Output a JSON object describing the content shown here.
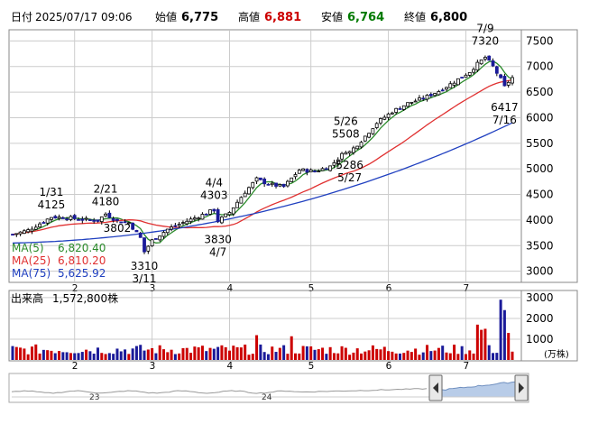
{
  "header": {
    "date_label": "日付",
    "date": "2025/07/17 09:06",
    "open_label": "始値",
    "open": "6,775",
    "high_label": "高値",
    "high": "6,881",
    "low_label": "安値",
    "low": "6,764",
    "close_label": "終値",
    "close": "6,800"
  },
  "colors": {
    "up": "#cc0000",
    "down": "#1a1a99",
    "ma5": "#2a8a2a",
    "ma25": "#e03030",
    "ma75": "#2040c0",
    "high": "#cc0000",
    "low": "#007a00",
    "grid": "#cccccc"
  },
  "legend": {
    "ma5": "MA(5)",
    "ma5_value": "6,820.40",
    "ma25": "MA(25)",
    "ma25_value": "6,810.20",
    "ma75": "MA(75)",
    "ma75_value": "5,625.92"
  },
  "volume_panel": {
    "label": "出来高",
    "value": "1,572,800株",
    "unit": "(万株)"
  },
  "navigator": {
    "labels": [
      "23",
      "24"
    ]
  },
  "chart_data": {
    "type": "candlestick",
    "price_axis": {
      "ylim": [
        2800,
        7700
      ],
      "ticks": [
        3000,
        3500,
        4000,
        4500,
        5000,
        5500,
        6000,
        6500,
        7000,
        7500
      ]
    },
    "volume_axis": {
      "ylim": [
        0,
        3300
      ],
      "ticks": [
        1000,
        2000,
        3000
      ],
      "unit": "(万株)"
    },
    "month_ticks": [
      {
        "label": "2",
        "index": 16
      },
      {
        "label": "3",
        "index": 36
      },
      {
        "label": "4",
        "index": 56
      },
      {
        "label": "5",
        "index": 77
      },
      {
        "label": "6",
        "index": 97
      },
      {
        "label": "7",
        "index": 117
      }
    ],
    "annotations": [
      {
        "date": "1/31",
        "price": "4125",
        "index": 10,
        "value": 4125,
        "pos": "above"
      },
      {
        "date": "2/21",
        "price": "4180",
        "index": 24,
        "value": 4180,
        "pos": "above"
      },
      {
        "date": "",
        "price": "3802",
        "index": 27,
        "value": 3802,
        "pos": "below-price"
      },
      {
        "date": "3/11",
        "price": "3310",
        "index": 34,
        "value": 3310,
        "pos": "below"
      },
      {
        "date": "4/4",
        "price": "4303",
        "index": 52,
        "value": 4303,
        "pos": "above"
      },
      {
        "date": "4/7",
        "price": "3830",
        "index": 53,
        "value": 3830,
        "pos": "below"
      },
      {
        "date": "5/26",
        "price": "5508",
        "index": 86,
        "value": 5508,
        "pos": "above"
      },
      {
        "date": "5/27",
        "price": "5286",
        "index": 87,
        "value": 5286,
        "pos": "below"
      },
      {
        "date": "7/9",
        "price": "7320",
        "index": 122,
        "value": 7320,
        "pos": "above"
      },
      {
        "date": "7/16",
        "price": "6417",
        "index": 127,
        "value": 6417,
        "pos": "below"
      }
    ],
    "ma_series": [
      {
        "name": "MA(5)",
        "color": "#2a8a2a"
      },
      {
        "name": "MA(25)",
        "color": "#e03030"
      },
      {
        "name": "MA(75)",
        "color": "#2040c0"
      }
    ]
  }
}
